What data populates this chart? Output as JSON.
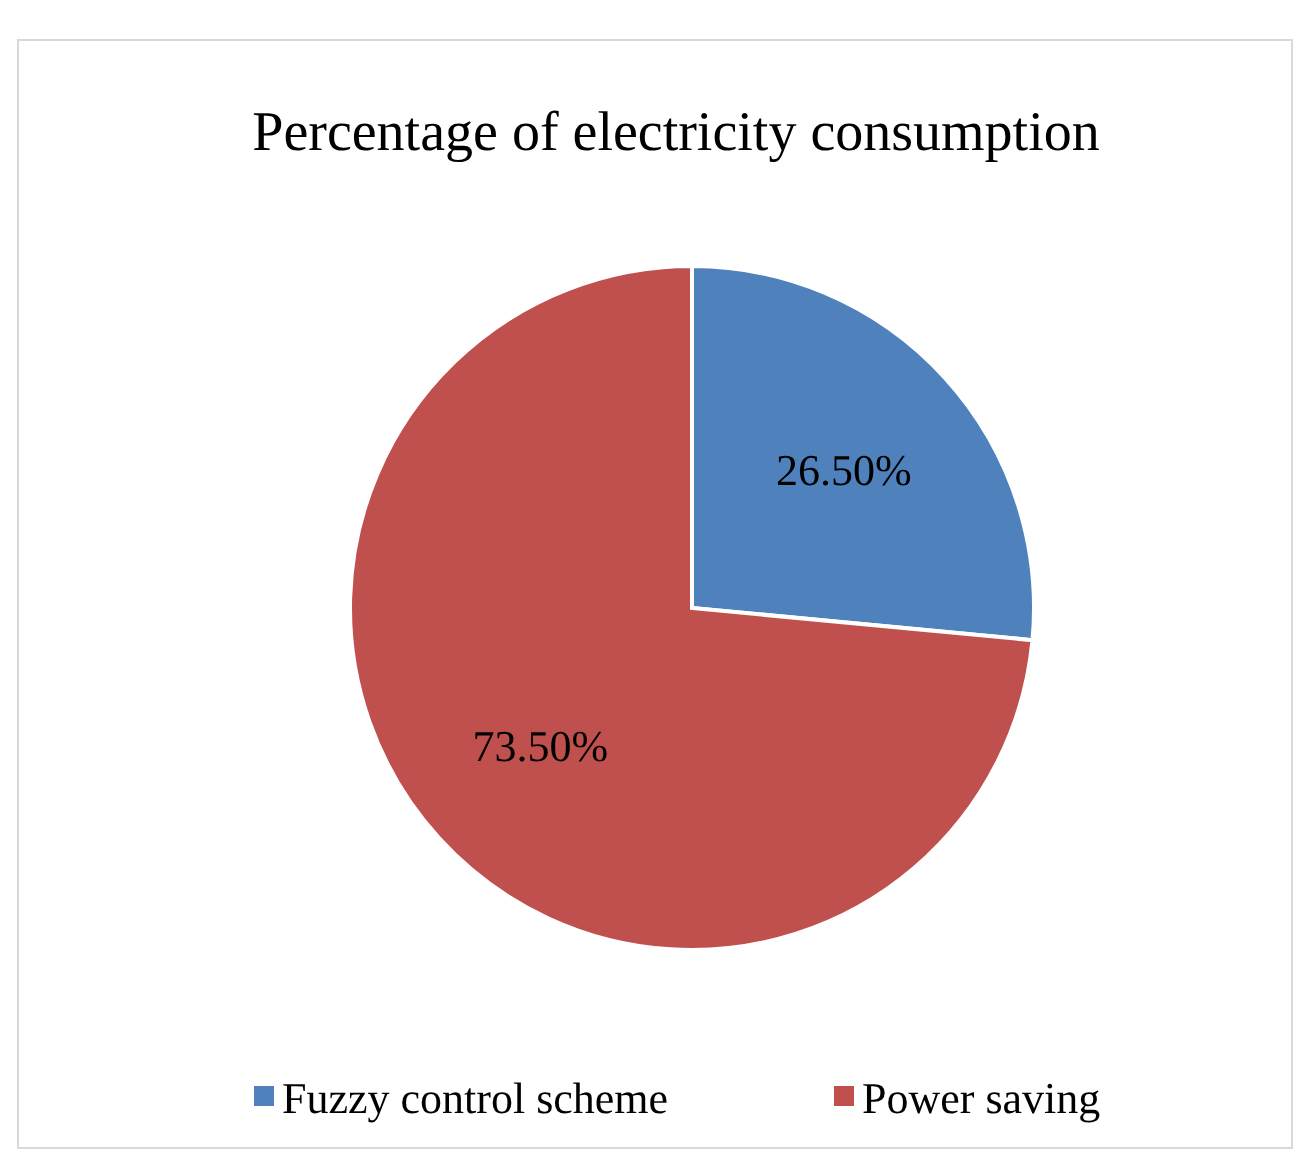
{
  "chart_data": {
    "type": "pie",
    "title": "Percentage of electricity consumption",
    "categories": [
      "Fuzzy control scheme",
      "Power saving"
    ],
    "values": [
      26.5,
      73.5
    ],
    "colors": [
      "#4f81bd",
      "#c0504d"
    ],
    "value_labels": [
      "26.50%",
      "73.50%"
    ],
    "legend": "bottom"
  }
}
